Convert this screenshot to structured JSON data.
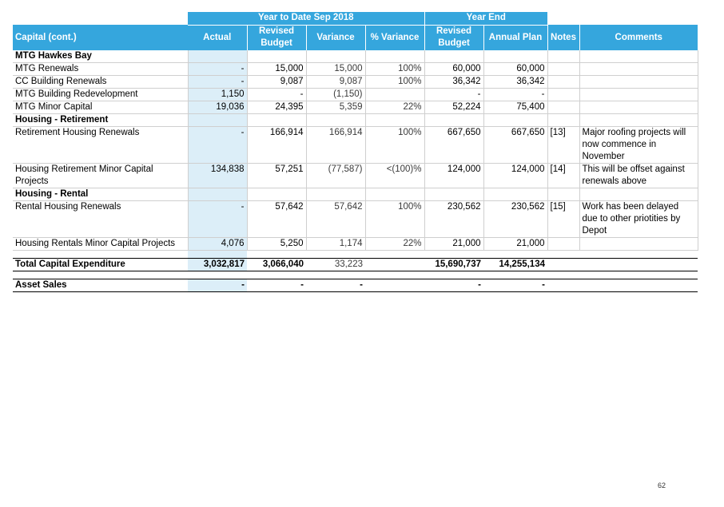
{
  "header": {
    "group_ytd": "Year to Date Sep 2018",
    "group_year_end": "Year End",
    "col_label": "Capital (cont.)",
    "col_actual": "Actual",
    "col_revised_budget": "Revised Budget",
    "col_variance": "Variance",
    "col_pct_variance": "% Variance",
    "col_ye_revised_budget": "Revised Budget",
    "col_annual_plan": "Annual Plan",
    "col_notes": "Notes",
    "col_comments": "Comments"
  },
  "rows": [
    {
      "label": "MTG Hawkes Bay",
      "heading": true
    },
    {
      "label": "MTG Renewals",
      "actual": "-",
      "revised": "15,000",
      "variance": "15,000",
      "pct": "100%",
      "ye_revised": "60,000",
      "annual": "60,000"
    },
    {
      "label": "CC Building Renewals",
      "actual": "-",
      "revised": "9,087",
      "variance": "9,087",
      "pct": "100%",
      "ye_revised": "36,342",
      "annual": "36,342"
    },
    {
      "label": "MTG Building Redevelopment",
      "actual": "1,150",
      "revised": "-",
      "variance": "(1,150)",
      "ye_revised": "-",
      "annual": "-"
    },
    {
      "label": "MTG Minor Capital",
      "actual": "19,036",
      "revised": "24,395",
      "variance": "5,359",
      "pct": "22%",
      "ye_revised": "52,224",
      "annual": "75,400"
    },
    {
      "label": "Housing - Retirement",
      "heading": true
    },
    {
      "label": "Retirement Housing Renewals",
      "actual": "-",
      "revised": "166,914",
      "variance": "166,914",
      "pct": "100%",
      "ye_revised": "667,650",
      "annual": "667,650",
      "notes": "[13]",
      "comments": "Major roofing projects will now commence in November"
    },
    {
      "label": "Housing Retirement Minor Capital Projects",
      "actual": "134,838",
      "revised": "57,251",
      "variance": "(77,587)",
      "pct": "<(100)%",
      "ye_revised": "124,000",
      "annual": "124,000",
      "notes": "[14]",
      "comments": "This will be offset against renewals above"
    },
    {
      "label": "Housing - Rental",
      "heading": true
    },
    {
      "label": "Rental Housing Renewals",
      "actual": "-",
      "revised": "57,642",
      "variance": "57,642",
      "pct": "100%",
      "ye_revised": "230,562",
      "annual": "230,562",
      "notes": "[15]",
      "comments": "Work has been delayed due to other priotities by Depot"
    },
    {
      "label": "Housing Rentals Minor Capital Projects",
      "actual": "4,076",
      "revised": "5,250",
      "variance": "1,174",
      "pct": "22%",
      "ye_revised": "21,000",
      "annual": "21,000"
    }
  ],
  "total": {
    "label": "Total Capital Expenditure",
    "actual": "3,032,817",
    "revised": "3,066,040",
    "variance": "33,223",
    "ye_revised": "15,690,737",
    "annual": "14,255,134"
  },
  "asset_sales": {
    "label": "Asset Sales",
    "actual": "-",
    "revised": "-",
    "variance": "-",
    "ye_revised": "-",
    "annual": "-"
  },
  "page_number": "62",
  "colors": {
    "header_bg": "#35A6DD",
    "actual_bg": "#DCEEF8",
    "negative": "#e0211d"
  }
}
